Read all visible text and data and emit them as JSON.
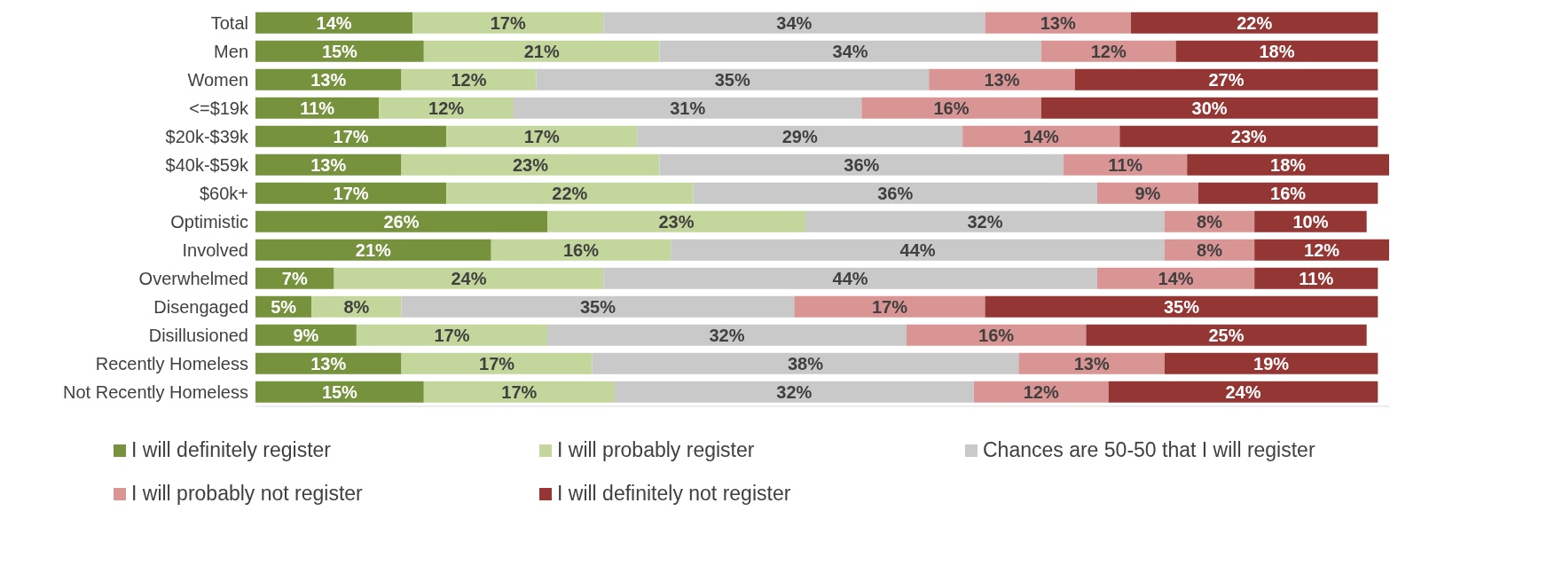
{
  "chart_data": {
    "type": "bar",
    "orientation": "horizontal",
    "stacked": true,
    "categories": [
      "Total",
      "Men",
      "Women",
      "<=$19k",
      "$20k-$39k",
      "$40k-$59k",
      "$60k+",
      "Optimistic",
      "Involved",
      "Overwhelmed",
      "Disengaged",
      "Disillusioned",
      "Recently Homeless",
      "Not Recently Homeless"
    ],
    "series": [
      {
        "name": "I will definitely register",
        "color": "#76923c",
        "values": [
          14,
          15,
          13,
          11,
          17,
          13,
          17,
          26,
          21,
          7,
          5,
          9,
          13,
          15
        ],
        "value_labels": [
          "14%",
          "15%",
          "13%",
          "11%",
          "17%",
          "13%",
          "17%",
          "26%",
          "21%",
          "7%",
          "5%",
          "9%",
          "13%",
          "15%"
        ]
      },
      {
        "name": "I will probably register",
        "color": "#c3d69b",
        "values": [
          17,
          21,
          12,
          12,
          17,
          23,
          22,
          23,
          16,
          24,
          8,
          17,
          17,
          17
        ],
        "value_labels": [
          "17%",
          "21%",
          "12%",
          "12%",
          "17%",
          "23%",
          "22%",
          "23%",
          "16%",
          "24%",
          "8%",
          "17%",
          "17%",
          "17%"
        ]
      },
      {
        "name": "Chances are 50-50 that I will register",
        "color": "#c9c9c9",
        "values": [
          34,
          34,
          35,
          31,
          29,
          36,
          36,
          32,
          44,
          44,
          35,
          32,
          38,
          32
        ],
        "value_labels": [
          "34%",
          "34%",
          "35%",
          "31%",
          "29%",
          "36%",
          "36%",
          "32%",
          "44%",
          "44%",
          "35%",
          "32%",
          "38%",
          "32%"
        ]
      },
      {
        "name": "I will probably not register",
        "color": "#d99594",
        "values": [
          13,
          12,
          13,
          16,
          14,
          11,
          9,
          8,
          8,
          14,
          17,
          16,
          13,
          12
        ],
        "value_labels": [
          "13%",
          "12%",
          "13%",
          "16%",
          "14%",
          "11%",
          "9%",
          "8%",
          "8%",
          "14%",
          "17%",
          "16%",
          "13%",
          "12%"
        ]
      },
      {
        "name": "I will definitely not register",
        "color": "#943634",
        "values": [
          22,
          18,
          27,
          30,
          23,
          18,
          16,
          10,
          12,
          11,
          35,
          25,
          19,
          24
        ],
        "value_labels": [
          "22%",
          "18%",
          "27%",
          "30%",
          "23%",
          "18%",
          "16%",
          "10%",
          "12%",
          "11%",
          "35%",
          "25%",
          "19%",
          "24%"
        ]
      }
    ],
    "xlim": [
      0,
      101
    ],
    "tick_labels": "y",
    "legend": "bottom"
  }
}
